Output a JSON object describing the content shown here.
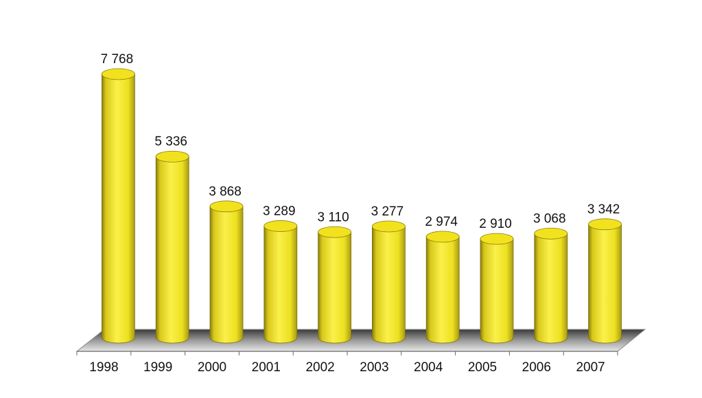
{
  "chart_data": {
    "type": "bar3d",
    "categories": [
      "1998",
      "1999",
      "2000",
      "2001",
      "2002",
      "2003",
      "2004",
      "2005",
      "2006",
      "2007"
    ],
    "values": [
      7768,
      5336,
      3868,
      3289,
      3110,
      3277,
      2974,
      2910,
      3068,
      3342
    ],
    "value_labels": [
      "7 768",
      "5 336",
      "3 868",
      "3 289",
      "3 110",
      "3 277",
      "2 974",
      "2 910",
      "3 068",
      "3 342"
    ],
    "color": "#f2e21e"
  }
}
